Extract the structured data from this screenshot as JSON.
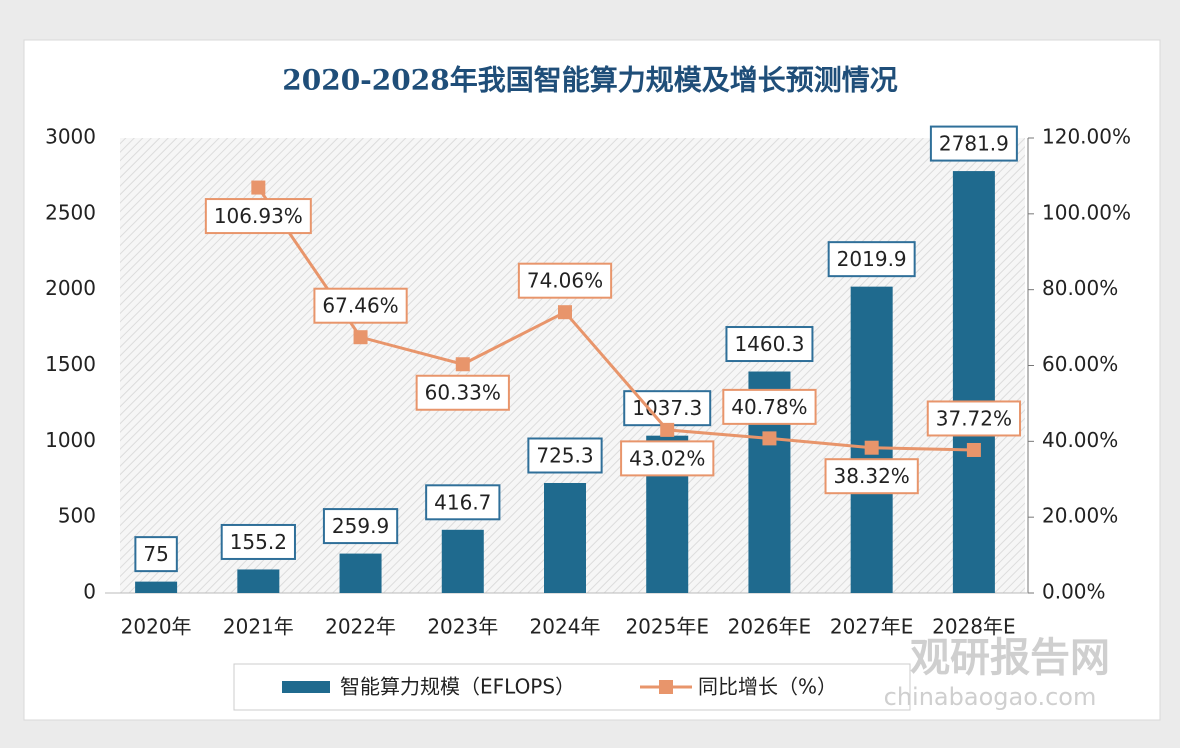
{
  "chart_data": {
    "type": "bar",
    "title": "2020-2028年我国智能算力规模及增长预测情况",
    "categories": [
      "2020年",
      "2021年",
      "2022年",
      "2023年",
      "2024年",
      "2025年E",
      "2026年E",
      "2027年E",
      "2028年E"
    ],
    "series": [
      {
        "name": "智能算力规模（EFLOPS）",
        "type": "bar",
        "color": "#1f6a8e",
        "values": [
          75,
          155.2,
          259.9,
          416.7,
          725.3,
          1037.3,
          1460.3,
          2019.9,
          2781.9
        ]
      },
      {
        "name": "同比增长（%）",
        "type": "line",
        "axis": "y2",
        "color": "#e8956b",
        "values": [
          null,
          106.93,
          67.46,
          60.33,
          74.06,
          43.02,
          40.78,
          38.32,
          37.72
        ],
        "value_labels": [
          null,
          "106.93%",
          "67.46%",
          "60.33%",
          "74.06%",
          "43.02%",
          "40.78%",
          "38.32%",
          "37.72%"
        ]
      }
    ],
    "ylim": [
      0,
      3000
    ],
    "yticks": [
      0,
      500,
      1000,
      1500,
      2000,
      2500,
      3000
    ],
    "y2lim": [
      0,
      120
    ],
    "y2ticks": [
      {
        "value": 0,
        "label": "0.00%"
      },
      {
        "value": 20,
        "label": "20.00%"
      },
      {
        "value": 40,
        "label": "40.00%"
      },
      {
        "value": 60,
        "label": "60.00%"
      },
      {
        "value": 80,
        "label": "80.00%"
      },
      {
        "value": 100,
        "label": "100.00%"
      },
      {
        "value": 120,
        "label": "120.00%"
      }
    ],
    "legend": "bottom",
    "watermark": {
      "title": "观研报告网",
      "url": "chinabaogao.com"
    }
  }
}
